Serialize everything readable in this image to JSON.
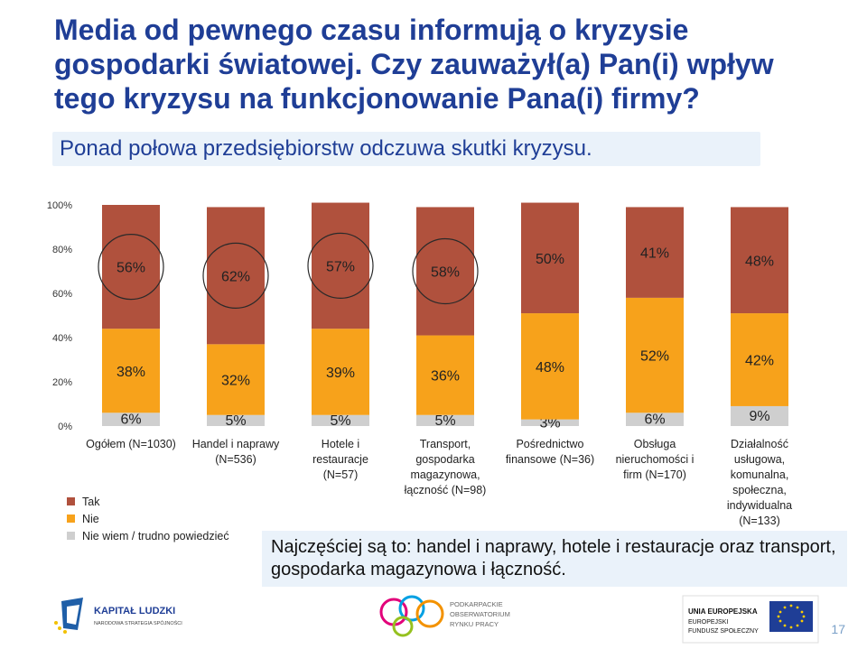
{
  "title": "Media od pewnego czasu informują o kryzysie gospodarki światowej. Czy zauważył(a) Pan(i) wpływ tego kryzysu na funkcjonowanie Pana(i) firmy?",
  "subtitle": "Ponad połowa przedsiębiorstw odczuwa skutki kryzysu.",
  "note": "Najczęściej są to: handel i naprawy, hotele i restauracje oraz transport, gospodarka magazynowa i łączność.",
  "page_number": "17",
  "logos": {
    "kapital_ludzki": [
      "KAPITAŁ LUDZKI",
      "NARODOWA STRATEGIA SPÓJNOŚCI"
    ],
    "porp": [
      "PODKARPACKIE",
      "OBSERWATORIUM",
      "RYNKU PRACY"
    ],
    "ue": [
      "UNIA EUROPEJSKA",
      "EUROPEJSKI",
      "FUNDUSZ SPOŁECZNY"
    ]
  },
  "colors": {
    "tak": "#b0513d",
    "nie": "#f7a21b",
    "nie_wiem": "#cfcfcf",
    "title": "#1f3e96",
    "highlight_circle": "#2a2a2a"
  },
  "chart_data": {
    "type": "bar",
    "stacked": true,
    "categories": [
      [
        "Ogółem (N=1030)"
      ],
      [
        "Handel i naprawy",
        "(N=536)"
      ],
      [
        "Hotele i",
        "restauracje",
        "(N=57)"
      ],
      [
        "Transport,",
        "gospodarka",
        "magazynowa,",
        "łączność (N=98)"
      ],
      [
        "Pośrednictwo",
        "finansowe (N=36)"
      ],
      [
        "Obsługa",
        "nieruchomości i",
        "firm (N=170)"
      ],
      [
        "Działalność",
        "usługowa,",
        "komunalna,",
        "społeczna,",
        "indywidualna",
        "(N=133)"
      ]
    ],
    "series": [
      {
        "name": "Nie wiem / trudno powiedzieć",
        "key": "nie_wiem",
        "values": [
          6,
          5,
          5,
          5,
          3,
          6,
          9
        ]
      },
      {
        "name": "Nie",
        "key": "nie",
        "values": [
          38,
          32,
          39,
          36,
          48,
          52,
          42
        ]
      },
      {
        "name": "Tak",
        "key": "tak",
        "values": [
          56,
          62,
          57,
          58,
          50,
          41,
          48
        ]
      }
    ],
    "highlighted_categories": [
      0,
      1,
      2,
      3
    ],
    "ylim": [
      0,
      100
    ],
    "yticks": [
      "0%",
      "20%",
      "40%",
      "60%",
      "80%",
      "100%"
    ],
    "legend": [
      "Tak",
      "Nie",
      "Nie wiem / trudno powiedzieć"
    ],
    "legend_position": "bottom-left"
  }
}
